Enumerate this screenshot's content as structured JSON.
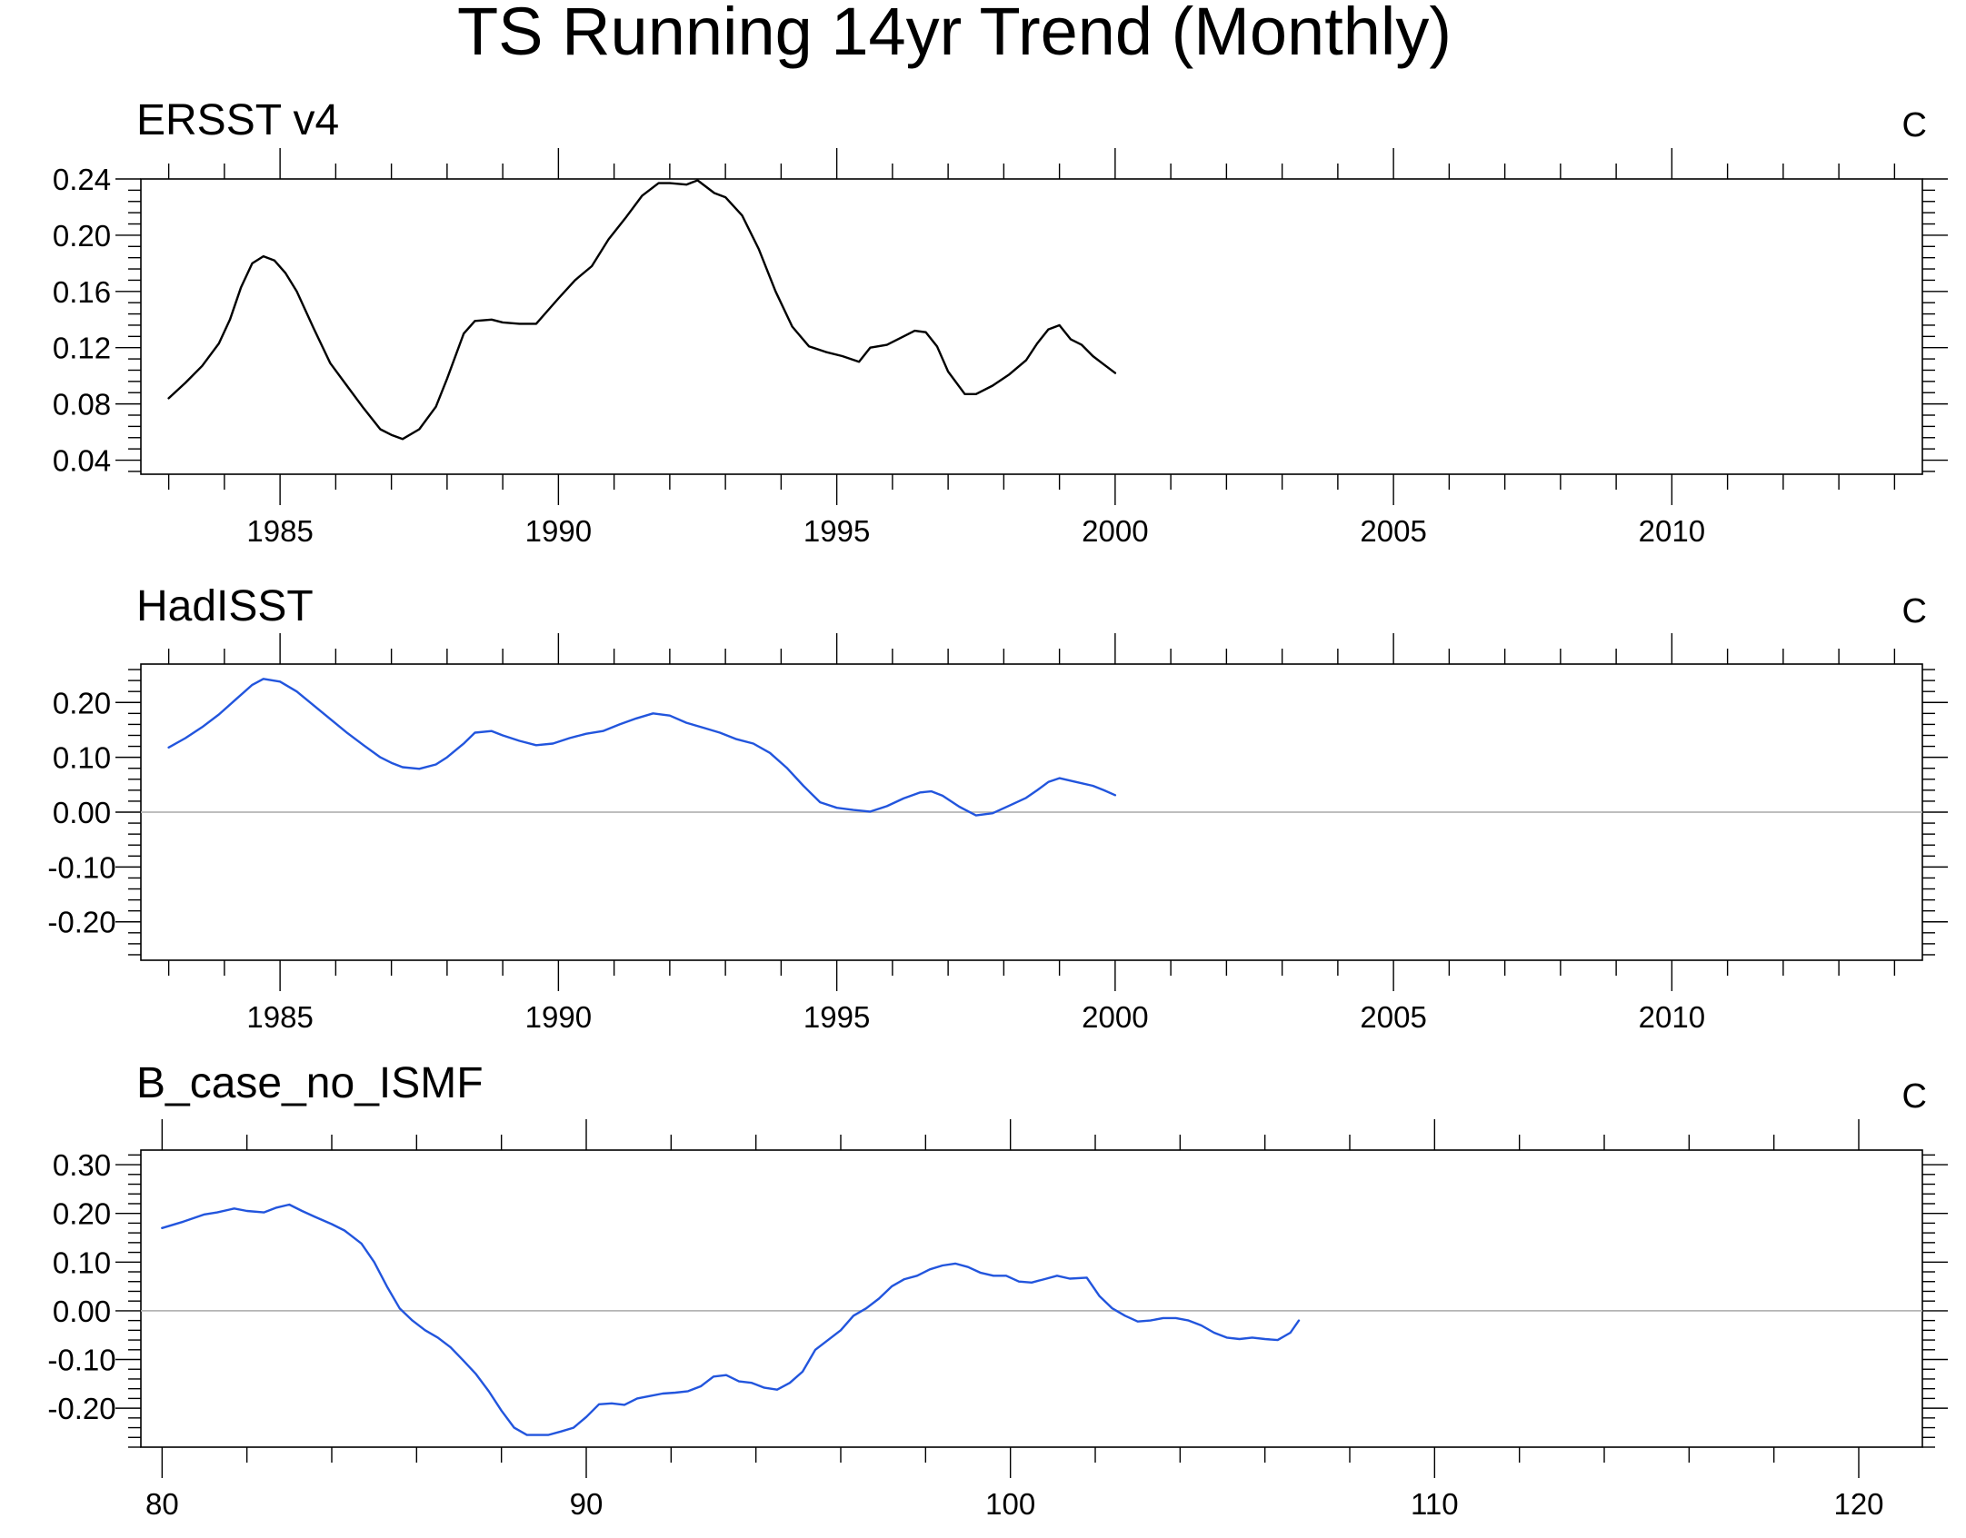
{
  "title": "TS Running 14yr Trend (Monthly)",
  "chart_data": [
    {
      "type": "line",
      "title": "ERSST v4",
      "units": "C",
      "xlim": [
        1982.5,
        2014.5
      ],
      "ylim": [
        0.03,
        0.24
      ],
      "xticks": [
        1985,
        1990,
        1995,
        2000,
        2005,
        2010
      ],
      "xtick_labels": [
        "1985",
        "1990",
        "1995",
        "2000",
        "2005",
        "2010"
      ],
      "yticks": [
        0.04,
        0.08,
        0.12,
        0.16,
        0.2,
        0.24
      ],
      "ytick_labels": [
        "0.04",
        "0.08",
        "0.12",
        "0.16",
        "0.20",
        "0.24"
      ],
      "zero_line": false,
      "series": [
        {
          "color": "#000000",
          "x": [
            1983.0,
            1983.3,
            1983.6,
            1983.9,
            1984.1,
            1984.3,
            1984.5,
            1984.7,
            1984.9,
            1985.1,
            1985.3,
            1985.6,
            1985.9,
            1986.2,
            1986.5,
            1986.8,
            1987.0,
            1987.2,
            1987.5,
            1987.8,
            1988.0,
            1988.3,
            1988.5,
            1988.8,
            1989.0,
            1989.3,
            1989.6,
            1989.8,
            1990.0,
            1990.3,
            1990.6,
            1990.9,
            1991.2,
            1991.5,
            1991.8,
            1992.0,
            1992.3,
            1992.5,
            1992.8,
            1993.0,
            1993.3,
            1993.6,
            1993.9,
            1994.2,
            1994.5,
            1994.8,
            1995.1,
            1995.4,
            1995.6,
            1995.9,
            1996.2,
            1996.4,
            1996.6,
            1996.8,
            1997.0,
            1997.3,
            1997.5,
            1997.8,
            1998.1,
            1998.4,
            1998.6,
            1998.8,
            1999.0,
            1999.2,
            1999.4,
            1999.6,
            1999.8,
            2000.0
          ],
          "y": [
            0.084,
            0.095,
            0.107,
            0.123,
            0.14,
            0.163,
            0.18,
            0.185,
            0.182,
            0.173,
            0.16,
            0.134,
            0.109,
            0.093,
            0.077,
            0.062,
            0.058,
            0.055,
            0.062,
            0.078,
            0.098,
            0.13,
            0.139,
            0.14,
            0.138,
            0.137,
            0.137,
            0.146,
            0.155,
            0.168,
            0.178,
            0.197,
            0.212,
            0.228,
            0.237,
            0.237,
            0.236,
            0.239,
            0.23,
            0.227,
            0.214,
            0.19,
            0.16,
            0.135,
            0.121,
            0.117,
            0.114,
            0.11,
            0.12,
            0.122,
            0.128,
            0.132,
            0.131,
            0.121,
            0.103,
            0.087,
            0.087,
            0.093,
            0.101,
            0.111,
            0.123,
            0.133,
            0.136,
            0.126,
            0.122,
            0.114,
            0.108,
            0.102
          ]
        }
      ]
    },
    {
      "type": "line",
      "title": "HadISST",
      "units": "C",
      "xlim": [
        1982.5,
        2014.5
      ],
      "ylim": [
        -0.27,
        0.27
      ],
      "xticks": [
        1985,
        1990,
        1995,
        2000,
        2005,
        2010
      ],
      "xtick_labels": [
        "1985",
        "1990",
        "1995",
        "2000",
        "2005",
        "2010"
      ],
      "yticks": [
        -0.2,
        -0.1,
        0.0,
        0.1,
        0.2
      ],
      "ytick_labels": [
        "-0.20",
        "-0.10",
        "0.00",
        "0.10",
        "0.20"
      ],
      "zero_line": true,
      "series": [
        {
          "color": "#2255dd",
          "x": [
            1983.0,
            1983.3,
            1983.6,
            1983.9,
            1984.2,
            1984.5,
            1984.7,
            1985.0,
            1985.3,
            1985.6,
            1985.9,
            1986.2,
            1986.5,
            1986.8,
            1987.0,
            1987.2,
            1987.5,
            1987.8,
            1988.0,
            1988.3,
            1988.5,
            1988.8,
            1989.0,
            1989.3,
            1989.6,
            1989.9,
            1990.2,
            1990.5,
            1990.8,
            1991.1,
            1991.4,
            1991.7,
            1992.0,
            1992.3,
            1992.6,
            1992.9,
            1993.2,
            1993.5,
            1993.8,
            1994.1,
            1994.4,
            1994.7,
            1995.0,
            1995.3,
            1995.6,
            1995.9,
            1996.2,
            1996.5,
            1996.7,
            1996.9,
            1997.2,
            1997.5,
            1997.8,
            1998.1,
            1998.4,
            1998.6,
            1998.8,
            1999.0,
            1999.3,
            1999.6,
            1999.8,
            2000.0
          ],
          "y": [
            0.118,
            0.135,
            0.155,
            0.178,
            0.205,
            0.232,
            0.243,
            0.238,
            0.22,
            0.195,
            0.17,
            0.145,
            0.122,
            0.1,
            0.09,
            0.082,
            0.079,
            0.087,
            0.1,
            0.125,
            0.145,
            0.148,
            0.14,
            0.13,
            0.122,
            0.125,
            0.135,
            0.143,
            0.148,
            0.16,
            0.171,
            0.18,
            0.176,
            0.163,
            0.154,
            0.145,
            0.133,
            0.125,
            0.108,
            0.081,
            0.048,
            0.018,
            0.008,
            0.004,
            0.001,
            0.011,
            0.025,
            0.036,
            0.038,
            0.03,
            0.01,
            -0.006,
            -0.002,
            0.012,
            0.026,
            0.04,
            0.055,
            0.062,
            0.055,
            0.048,
            0.04,
            0.031
          ]
        }
      ]
    },
    {
      "type": "line",
      "title": "B_case_no_ISMF",
      "units": "C",
      "xlim": [
        79.5,
        121.5
      ],
      "ylim": [
        -0.28,
        0.33
      ],
      "xticks": [
        80,
        90,
        100,
        110,
        120
      ],
      "xtick_labels": [
        "80",
        "90",
        "100",
        "110",
        "120"
      ],
      "yticks": [
        -0.2,
        -0.1,
        0.0,
        0.1,
        0.2,
        0.3
      ],
      "ytick_labels": [
        "-0.20",
        "-0.10",
        "0.00",
        "0.10",
        "0.20",
        "0.30"
      ],
      "zero_line": true,
      "series": [
        {
          "color": "#2255dd",
          "x": [
            80.0,
            80.5,
            81.0,
            81.3,
            81.7,
            82.0,
            82.4,
            82.7,
            83.0,
            83.3,
            83.6,
            84.0,
            84.3,
            84.7,
            85.0,
            85.3,
            85.6,
            85.9,
            86.2,
            86.5,
            86.8,
            87.1,
            87.4,
            87.7,
            88.0,
            88.3,
            88.6,
            88.9,
            89.1,
            89.4,
            89.7,
            90.0,
            90.3,
            90.6,
            90.9,
            91.2,
            91.5,
            91.8,
            92.1,
            92.4,
            92.7,
            93.0,
            93.3,
            93.6,
            93.9,
            94.2,
            94.5,
            94.8,
            95.1,
            95.4,
            95.7,
            96.0,
            96.3,
            96.6,
            96.9,
            97.2,
            97.5,
            97.8,
            98.1,
            98.4,
            98.7,
            99.0,
            99.3,
            99.6,
            99.9,
            100.2,
            100.5,
            100.8,
            101.1,
            101.4,
            101.8,
            102.1,
            102.4,
            102.7,
            103.0,
            103.3,
            103.6,
            103.9,
            104.2,
            104.5,
            104.8,
            105.1,
            105.4,
            105.7,
            106.0,
            106.3,
            106.6,
            106.8
          ],
          "y": [
            0.17,
            0.183,
            0.198,
            0.202,
            0.21,
            0.205,
            0.202,
            0.212,
            0.218,
            0.205,
            0.193,
            0.178,
            0.165,
            0.138,
            0.1,
            0.05,
            0.005,
            -0.02,
            -0.04,
            -0.055,
            -0.075,
            -0.102,
            -0.13,
            -0.165,
            -0.205,
            -0.24,
            -0.255,
            -0.255,
            -0.255,
            -0.248,
            -0.24,
            -0.218,
            -0.192,
            -0.19,
            -0.193,
            -0.18,
            -0.175,
            -0.17,
            -0.168,
            -0.165,
            -0.155,
            -0.135,
            -0.132,
            -0.145,
            -0.148,
            -0.158,
            -0.162,
            -0.148,
            -0.125,
            -0.08,
            -0.06,
            -0.04,
            -0.01,
            0.005,
            0.025,
            0.05,
            0.065,
            0.072,
            0.085,
            0.093,
            0.097,
            0.09,
            0.078,
            0.072,
            0.072,
            0.06,
            0.058,
            0.065,
            0.072,
            0.066,
            0.068,
            0.03,
            0.005,
            -0.01,
            -0.022,
            -0.02,
            -0.015,
            -0.015,
            -0.02,
            -0.03,
            -0.045,
            -0.055,
            -0.058,
            -0.055,
            -0.058,
            -0.06,
            -0.045,
            -0.02
          ]
        }
      ]
    }
  ]
}
